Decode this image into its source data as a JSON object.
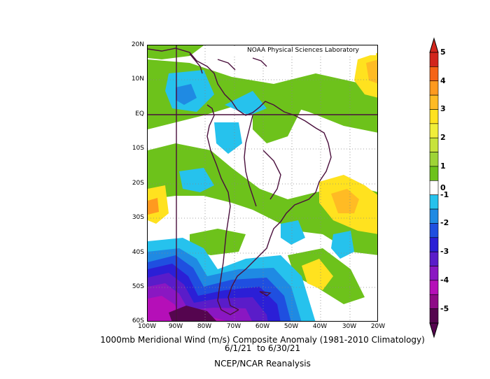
{
  "map": {
    "credit": "NOAA Physical Sciences Laboratory",
    "lat_labels": [
      "20N",
      "10N",
      "EQ",
      "10S",
      "20S",
      "30S",
      "40S",
      "50S",
      "60S"
    ],
    "lon_labels": [
      "100W",
      "90W",
      "80W",
      "70W",
      "60W",
      "50W",
      "40W",
      "30W",
      "20W"
    ],
    "extent": {
      "lon_min": -100,
      "lon_max": -20,
      "lat_min": -60,
      "lat_max": 20
    },
    "reference_lines": {
      "equator_lat": 0,
      "meridian_lon": -90
    }
  },
  "caption": {
    "line1": "1000mb Meridional Wind (m/s) Composite Anomaly (1981-2010 Climatology)",
    "line2": "6/1/21  to 6/30/21",
    "line3": "NCEP/NCAR Reanalysis"
  },
  "colorbar": {
    "labels": [
      "5",
      "4",
      "3",
      "2",
      "1",
      "0",
      "-1",
      "-2",
      "-3",
      "-4",
      "-5"
    ],
    "bins": [
      {
        "range": "4.5 to 5",
        "color": "#d2261d"
      },
      {
        "range": "4 to 4.5",
        "color": "#f56417"
      },
      {
        "range": "3.5 to 4",
        "color": "#ff9a1f"
      },
      {
        "range": "3 to 3.5",
        "color": "#ffbb24"
      },
      {
        "range": "2.5 to 3",
        "color": "#ffe21f"
      },
      {
        "range": "2 to 2.5",
        "color": "#f0ee3a"
      },
      {
        "range": "1.5 to 2",
        "color": "#c7e33b"
      },
      {
        "range": "1 to 1.5",
        "color": "#9ed436"
      },
      {
        "range": "0.5 to 1",
        "color": "#6dc21b"
      },
      {
        "range": "-0.5 to 0.5",
        "color": "#ffffff"
      },
      {
        "range": "-1 to -0.5",
        "color": "#26c2ed"
      },
      {
        "range": "-1.5 to -1",
        "color": "#1f8ae3"
      },
      {
        "range": "-2 to -1.5",
        "color": "#1f4fe0"
      },
      {
        "range": "-2.5 to -2",
        "color": "#2b1fd6"
      },
      {
        "range": "-3 to -2.5",
        "color": "#5a1cc9"
      },
      {
        "range": "-3.5 to -3",
        "color": "#8a17c2"
      },
      {
        "range": "-4 to -3.5",
        "color": "#b50fb8"
      },
      {
        "range": "-4.5 to -4",
        "color": "#8e0a87"
      },
      {
        "range": "-5 to -4.5",
        "color": "#55054f"
      }
    ]
  }
}
